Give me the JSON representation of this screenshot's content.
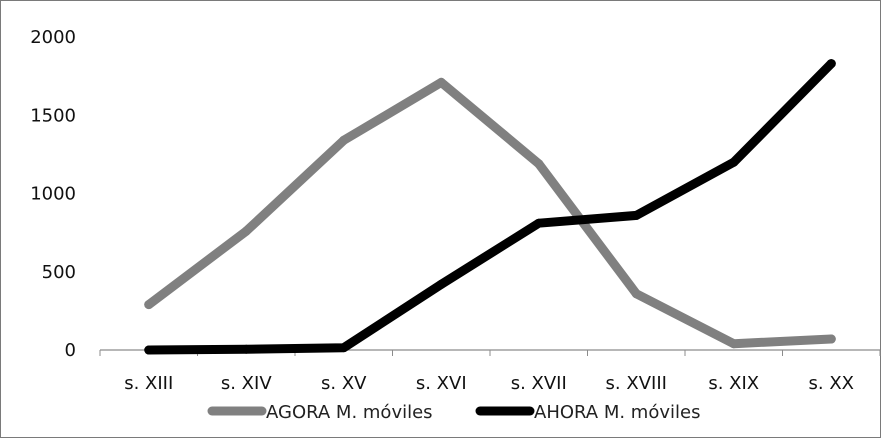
{
  "chart_data": {
    "type": "line",
    "title": "",
    "xlabel": "",
    "ylabel": "",
    "categories": [
      "s. XIII",
      "s. XIV",
      "s. XV",
      "s. XVI",
      "s. XVII",
      "s. XVIII",
      "s. XIX",
      "s. XX"
    ],
    "ylim": [
      0,
      2000
    ],
    "yticks": [
      "0",
      "500",
      "1000",
      "1500",
      "2000"
    ],
    "grid": false,
    "legend_position": "bottom",
    "series": [
      {
        "name": "AGORA M. móviles",
        "color": "#808080",
        "values": [
          290,
          760,
          1340,
          1710,
          1190,
          360,
          40,
          70
        ]
      },
      {
        "name": "AHORA M. móviles",
        "color": "#000000",
        "values": [
          0,
          5,
          15,
          420,
          810,
          860,
          1200,
          1830
        ]
      }
    ]
  }
}
